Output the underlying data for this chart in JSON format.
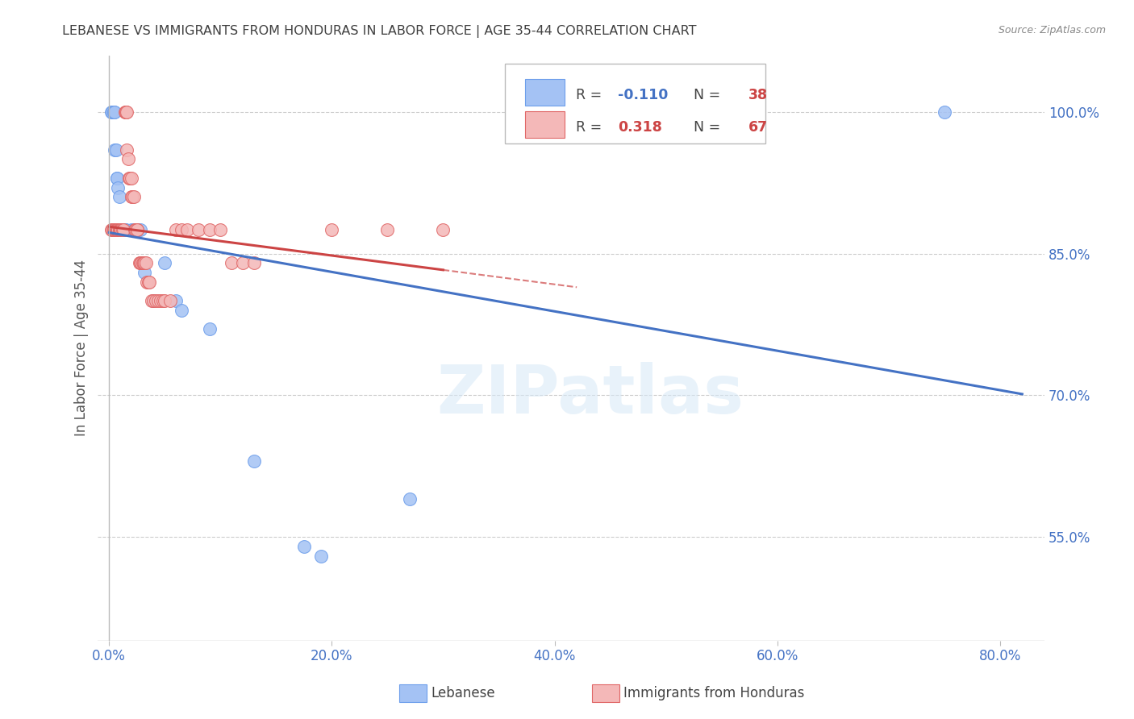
{
  "title": "LEBANESE VS IMMIGRANTS FROM HONDURAS IN LABOR FORCE | AGE 35-44 CORRELATION CHART",
  "source": "Source: ZipAtlas.com",
  "ylabel": "In Labor Force | Age 35-44",
  "x_tick_labels": [
    "0.0%",
    "20.0%",
    "40.0%",
    "60.0%",
    "80.0%"
  ],
  "x_tick_values": [
    0.0,
    0.2,
    0.4,
    0.6,
    0.8
  ],
  "y_tick_labels": [
    "55.0%",
    "70.0%",
    "85.0%",
    "100.0%"
  ],
  "y_tick_values": [
    0.55,
    0.7,
    0.85,
    1.0
  ],
  "xlim": [
    -0.01,
    0.84
  ],
  "ylim": [
    0.44,
    1.06
  ],
  "watermark": "ZIPatlas",
  "blue_line_color": "#4472c4",
  "pink_line_color": "#cc4444",
  "blue_dot_facecolor": "#a4c2f4",
  "blue_dot_edgecolor": "#6d9eeb",
  "pink_dot_facecolor": "#f4b8b8",
  "pink_dot_edgecolor": "#e06666",
  "grid_color": "#cccccc",
  "background_color": "#ffffff",
  "axis_tick_color": "#4472c4",
  "title_color": "#404040",
  "blue_scatter": [
    [
      0.002,
      1.0
    ],
    [
      0.003,
      1.0
    ],
    [
      0.004,
      1.0
    ],
    [
      0.004,
      1.0
    ],
    [
      0.005,
      1.0
    ],
    [
      0.005,
      0.96
    ],
    [
      0.006,
      0.96
    ],
    [
      0.007,
      0.93
    ],
    [
      0.007,
      0.93
    ],
    [
      0.008,
      0.92
    ],
    [
      0.009,
      0.91
    ],
    [
      0.01,
      0.875
    ],
    [
      0.01,
      0.875
    ],
    [
      0.01,
      0.875
    ],
    [
      0.01,
      0.875
    ],
    [
      0.011,
      0.875
    ],
    [
      0.011,
      0.875
    ],
    [
      0.012,
      0.875
    ],
    [
      0.012,
      0.875
    ],
    [
      0.013,
      0.875
    ],
    [
      0.014,
      0.875
    ],
    [
      0.015,
      0.875
    ],
    [
      0.02,
      0.875
    ],
    [
      0.022,
      0.875
    ],
    [
      0.025,
      0.875
    ],
    [
      0.028,
      0.875
    ],
    [
      0.03,
      0.84
    ],
    [
      0.032,
      0.83
    ],
    [
      0.04,
      0.8
    ],
    [
      0.05,
      0.84
    ],
    [
      0.06,
      0.8
    ],
    [
      0.065,
      0.79
    ],
    [
      0.09,
      0.77
    ],
    [
      0.13,
      0.63
    ],
    [
      0.175,
      0.54
    ],
    [
      0.19,
      0.53
    ],
    [
      0.27,
      0.59
    ],
    [
      0.75,
      1.0
    ]
  ],
  "pink_scatter": [
    [
      0.002,
      0.875
    ],
    [
      0.003,
      0.875
    ],
    [
      0.004,
      0.875
    ],
    [
      0.004,
      0.875
    ],
    [
      0.005,
      0.875
    ],
    [
      0.005,
      0.875
    ],
    [
      0.006,
      0.875
    ],
    [
      0.006,
      0.875
    ],
    [
      0.007,
      0.875
    ],
    [
      0.007,
      0.875
    ],
    [
      0.008,
      0.875
    ],
    [
      0.008,
      0.875
    ],
    [
      0.009,
      0.875
    ],
    [
      0.009,
      0.875
    ],
    [
      0.01,
      0.875
    ],
    [
      0.01,
      0.875
    ],
    [
      0.01,
      0.875
    ],
    [
      0.011,
      0.875
    ],
    [
      0.012,
      0.875
    ],
    [
      0.013,
      0.875
    ],
    [
      0.014,
      1.0
    ],
    [
      0.015,
      1.0
    ],
    [
      0.015,
      1.0
    ],
    [
      0.016,
      1.0
    ],
    [
      0.016,
      0.96
    ],
    [
      0.017,
      0.95
    ],
    [
      0.018,
      0.93
    ],
    [
      0.019,
      0.93
    ],
    [
      0.02,
      0.93
    ],
    [
      0.02,
      0.91
    ],
    [
      0.021,
      0.91
    ],
    [
      0.022,
      0.91
    ],
    [
      0.023,
      0.875
    ],
    [
      0.024,
      0.875
    ],
    [
      0.025,
      0.875
    ],
    [
      0.025,
      0.875
    ],
    [
      0.027,
      0.84
    ],
    [
      0.028,
      0.84
    ],
    [
      0.029,
      0.84
    ],
    [
      0.03,
      0.84
    ],
    [
      0.031,
      0.84
    ],
    [
      0.032,
      0.84
    ],
    [
      0.033,
      0.84
    ],
    [
      0.034,
      0.82
    ],
    [
      0.035,
      0.82
    ],
    [
      0.036,
      0.82
    ],
    [
      0.038,
      0.8
    ],
    [
      0.04,
      0.8
    ],
    [
      0.042,
      0.8
    ],
    [
      0.044,
      0.8
    ],
    [
      0.046,
      0.8
    ],
    [
      0.048,
      0.8
    ],
    [
      0.05,
      0.8
    ],
    [
      0.055,
      0.8
    ],
    [
      0.06,
      0.875
    ],
    [
      0.065,
      0.875
    ],
    [
      0.07,
      0.875
    ],
    [
      0.08,
      0.875
    ],
    [
      0.09,
      0.875
    ],
    [
      0.1,
      0.875
    ],
    [
      0.11,
      0.84
    ],
    [
      0.12,
      0.84
    ],
    [
      0.13,
      0.84
    ],
    [
      0.2,
      0.875
    ],
    [
      0.25,
      0.875
    ],
    [
      0.3,
      0.875
    ]
  ],
  "pink_line_solid_end": 0.3,
  "pink_line_dash_end": 0.42
}
